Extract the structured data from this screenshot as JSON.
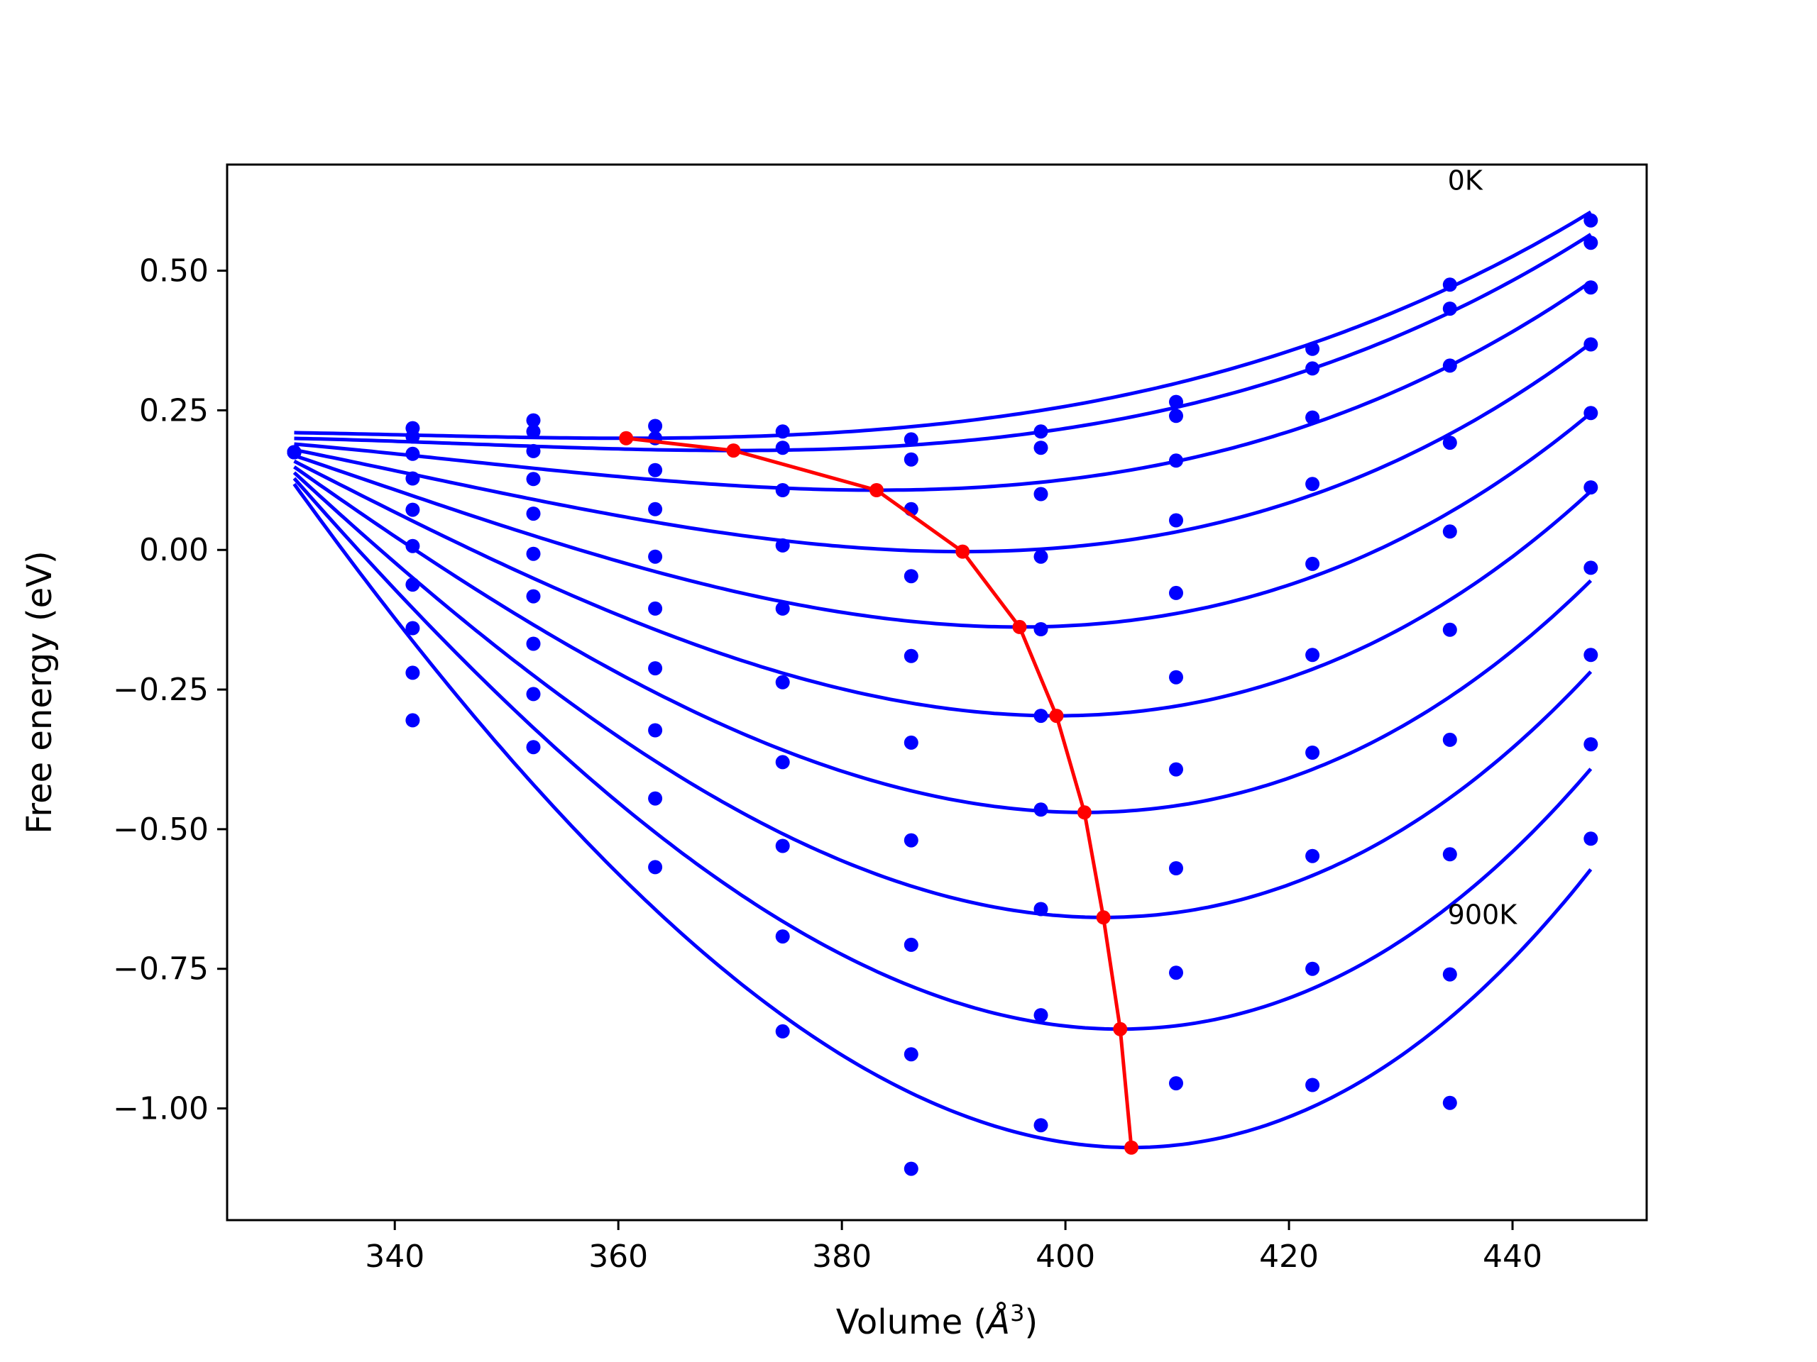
{
  "chart_data": {
    "type": "scatter",
    "title": "",
    "xlabel": "Volume ($\\AA^3$)",
    "ylabel": "Free energy (eV)",
    "xlim": [
      325,
      452
    ],
    "ylim": [
      -1.2,
      0.69
    ],
    "xticks": [
      340,
      360,
      380,
      400,
      420,
      440
    ],
    "xtick_labels": [
      "340",
      "360",
      "380",
      "400",
      "420",
      "440"
    ],
    "yticks": [
      0.5,
      0.25,
      0.0,
      -0.25,
      -0.5,
      -0.75,
      -1.0
    ],
    "ytick_labels": [
      "0.50",
      "0.25",
      "0.00",
      "−0.25",
      "−0.50",
      "−0.75",
      "−1.00"
    ],
    "grid": false,
    "colors": {
      "data": "#0000ff",
      "minimum_path": "#ff0000"
    },
    "annotations": [
      {
        "text": "0K",
        "x": 434.2,
        "y": 0.645
      },
      {
        "text": "900K",
        "x": 434.2,
        "y": -0.67
      }
    ],
    "volumes": [
      331.0,
      341.6,
      352.4,
      363.3,
      374.7,
      386.2,
      397.8,
      409.9,
      422.1,
      434.4,
      447.0
    ],
    "series": [
      {
        "values": [
          0.175,
          0.218,
          0.232,
          0.222,
          0.212,
          0.198,
          0.212,
          0.265,
          0.36,
          0.475,
          0.59
        ],
        "fit": {
          "vmin": 360.7,
          "fmin": 0.2,
          "a": 8e-05,
          "end": 0.605
        }
      },
      {
        "values": [
          0.175,
          0.203,
          0.212,
          0.2,
          0.183,
          0.162,
          0.183,
          0.24,
          0.325,
          0.432,
          0.55
        ],
        "fit": {
          "vmin": 370.3,
          "fmin": 0.178,
          "a": 7.35e-05,
          "end": 0.565
        }
      },
      {
        "values": [
          0.175,
          0.172,
          0.177,
          0.143,
          0.107,
          0.073,
          0.1,
          0.16,
          0.237,
          0.33,
          0.47
        ],
        "fit": {
          "vmin": 383.1,
          "fmin": 0.107,
          "a": 7.28e-05,
          "end": 0.48
        }
      },
      {
        "values": [
          0.175,
          0.128,
          0.127,
          0.073,
          0.008,
          -0.047,
          -0.012,
          0.053,
          0.118,
          0.192,
          0.368
        ],
        "fit": {
          "vmin": 390.8,
          "fmin": -0.003,
          "a": 7.45e-05,
          "end": 0.37
        }
      },
      {
        "values": [
          0.175,
          0.072,
          0.065,
          -0.012,
          -0.105,
          -0.19,
          -0.142,
          -0.077,
          -0.025,
          0.033,
          0.245
        ],
        "fit": {
          "vmin": 395.9,
          "fmin": -0.138,
          "a": 7.78e-05,
          "end": 0.245
        }
      },
      {
        "values": [
          0.175,
          0.007,
          -0.007,
          -0.105,
          -0.237,
          -0.345,
          -0.297,
          -0.228,
          -0.188,
          -0.143,
          0.112
        ],
        "fit": {
          "vmin": 399.2,
          "fmin": -0.297,
          "a": 8.18e-05,
          "end": 0.105
        }
      },
      {
        "values": [
          0.175,
          -0.062,
          -0.083,
          -0.212,
          -0.38,
          -0.52,
          -0.465,
          -0.393,
          -0.363,
          -0.34,
          -0.032
        ],
        "fit": {
          "vmin": 401.7,
          "fmin": -0.47,
          "a": 8.55e-05,
          "end": -0.055
        }
      },
      {
        "values": [
          0.175,
          -0.14,
          -0.168,
          -0.323,
          -0.53,
          -0.707,
          -0.643,
          -0.57,
          -0.548,
          -0.545,
          -0.188
        ],
        "fit": {
          "vmin": 403.4,
          "fmin": -0.658,
          "a": 8.93e-05,
          "end": -0.218
        }
      },
      {
        "values": [
          0.175,
          -0.22,
          -0.258,
          -0.445,
          -0.692,
          -0.903,
          -0.833,
          -0.757,
          -0.75,
          -0.76,
          -0.348
        ],
        "fit": {
          "vmin": 404.9,
          "fmin": -0.858,
          "a": 9.37e-05,
          "end": -0.392
        }
      },
      {
        "values": [
          0.175,
          -0.305,
          -0.353,
          -0.568,
          -0.862,
          -1.108,
          -1.03,
          -0.955,
          -0.958,
          -0.99,
          -0.517
        ],
        "fit": {
          "vmin": 405.9,
          "fmin": -1.07,
          "a": 9.79e-05,
          "end": -0.572
        }
      }
    ],
    "fit_start": {
      "x": 331.0,
      "y_top": 0.21,
      "y_bottom": 0.118
    },
    "minimum_path": {
      "x": [
        360.7,
        370.3,
        383.1,
        390.8,
        395.9,
        399.2,
        401.7,
        403.4,
        404.9,
        405.9
      ],
      "y": [
        0.2,
        0.178,
        0.107,
        -0.003,
        -0.138,
        -0.297,
        -0.47,
        -0.658,
        -0.858,
        -1.07
      ]
    }
  }
}
